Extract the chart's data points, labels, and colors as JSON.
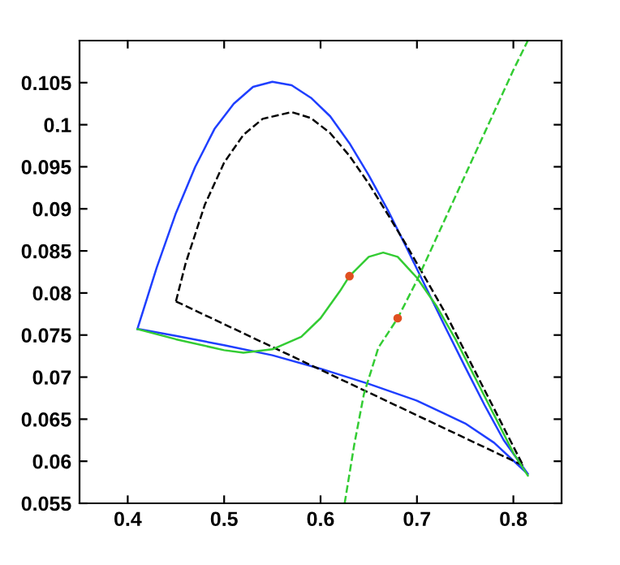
{
  "chart_data": {
    "type": "line",
    "xlim": [
      0.35,
      0.85
    ],
    "ylim": [
      0.055,
      0.11
    ],
    "xticks": [
      0.4,
      0.5,
      0.6,
      0.7,
      0.8
    ],
    "yticks": [
      0.055,
      0.06,
      0.065,
      0.07,
      0.075,
      0.08,
      0.085,
      0.09,
      0.095,
      0.1,
      0.105
    ],
    "grid": false,
    "legend": false,
    "series": [
      {
        "color": "#1f3fff",
        "line_style": "solid",
        "x": [
          0.41,
          0.43,
          0.45,
          0.47,
          0.49,
          0.51,
          0.53,
          0.55,
          0.57,
          0.59,
          0.61,
          0.63,
          0.65,
          0.67,
          0.69,
          0.71,
          0.73,
          0.75,
          0.77,
          0.79,
          0.815
        ],
        "values": [
          0.0757,
          0.083,
          0.0895,
          0.095,
          0.0995,
          0.1025,
          0.1045,
          0.1051,
          0.1047,
          0.1032,
          0.101,
          0.0978,
          0.094,
          0.0898,
          0.0852,
          0.0805,
          0.0758,
          0.0712,
          0.0667,
          0.0625,
          0.0585
        ]
      },
      {
        "color": "#1f3fff",
        "line_style": "solid",
        "x": [
          0.412,
          0.45,
          0.5,
          0.55,
          0.6,
          0.65,
          0.7,
          0.75,
          0.78,
          0.812
        ],
        "values": [
          0.0757,
          0.0749,
          0.0738,
          0.0726,
          0.071,
          0.0692,
          0.0672,
          0.0645,
          0.0622,
          0.0588
        ]
      },
      {
        "color": "#000000",
        "line_style": "dashed",
        "x": [
          0.45,
          0.46,
          0.48,
          0.5,
          0.52,
          0.54,
          0.57,
          0.59,
          0.61,
          0.63,
          0.65,
          0.67,
          0.69,
          0.71,
          0.73,
          0.75,
          0.77,
          0.79,
          0.81
        ],
        "values": [
          0.079,
          0.0835,
          0.0905,
          0.0955,
          0.0988,
          0.1007,
          0.1015,
          0.1008,
          0.099,
          0.0963,
          0.093,
          0.0893,
          0.0855,
          0.0815,
          0.0775,
          0.073,
          0.0685,
          0.064,
          0.0595
        ]
      },
      {
        "color": "#000000",
        "line_style": "dashed",
        "x": [
          0.45,
          0.81
        ],
        "values": [
          0.079,
          0.0595
        ]
      },
      {
        "color": "#33cc33",
        "line_style": "solid",
        "x": [
          0.41,
          0.45,
          0.5,
          0.52,
          0.55,
          0.58,
          0.6,
          0.62,
          0.63,
          0.65,
          0.665,
          0.68,
          0.7,
          0.72,
          0.74,
          0.76,
          0.78,
          0.8,
          0.815
        ],
        "values": [
          0.0757,
          0.0745,
          0.0732,
          0.0729,
          0.0733,
          0.0748,
          0.077,
          0.0802,
          0.082,
          0.0843,
          0.0848,
          0.0843,
          0.0818,
          0.0785,
          0.0745,
          0.07,
          0.0655,
          0.061,
          0.0583
        ]
      },
      {
        "color": "#33cc33",
        "line_style": "dashed",
        "x": [
          0.625,
          0.635,
          0.645,
          0.66,
          0.68,
          0.7,
          0.72,
          0.74,
          0.76,
          0.78,
          0.8,
          0.815
        ],
        "values": [
          0.055,
          0.062,
          0.068,
          0.0735,
          0.077,
          0.0815,
          0.0865,
          0.0915,
          0.0965,
          0.1015,
          0.1065,
          0.11
        ]
      },
      {
        "type": "scatter",
        "color": "#e05020",
        "marker": "circle",
        "x": [
          0.63,
          0.68
        ],
        "values": [
          0.082,
          0.077
        ]
      }
    ]
  }
}
